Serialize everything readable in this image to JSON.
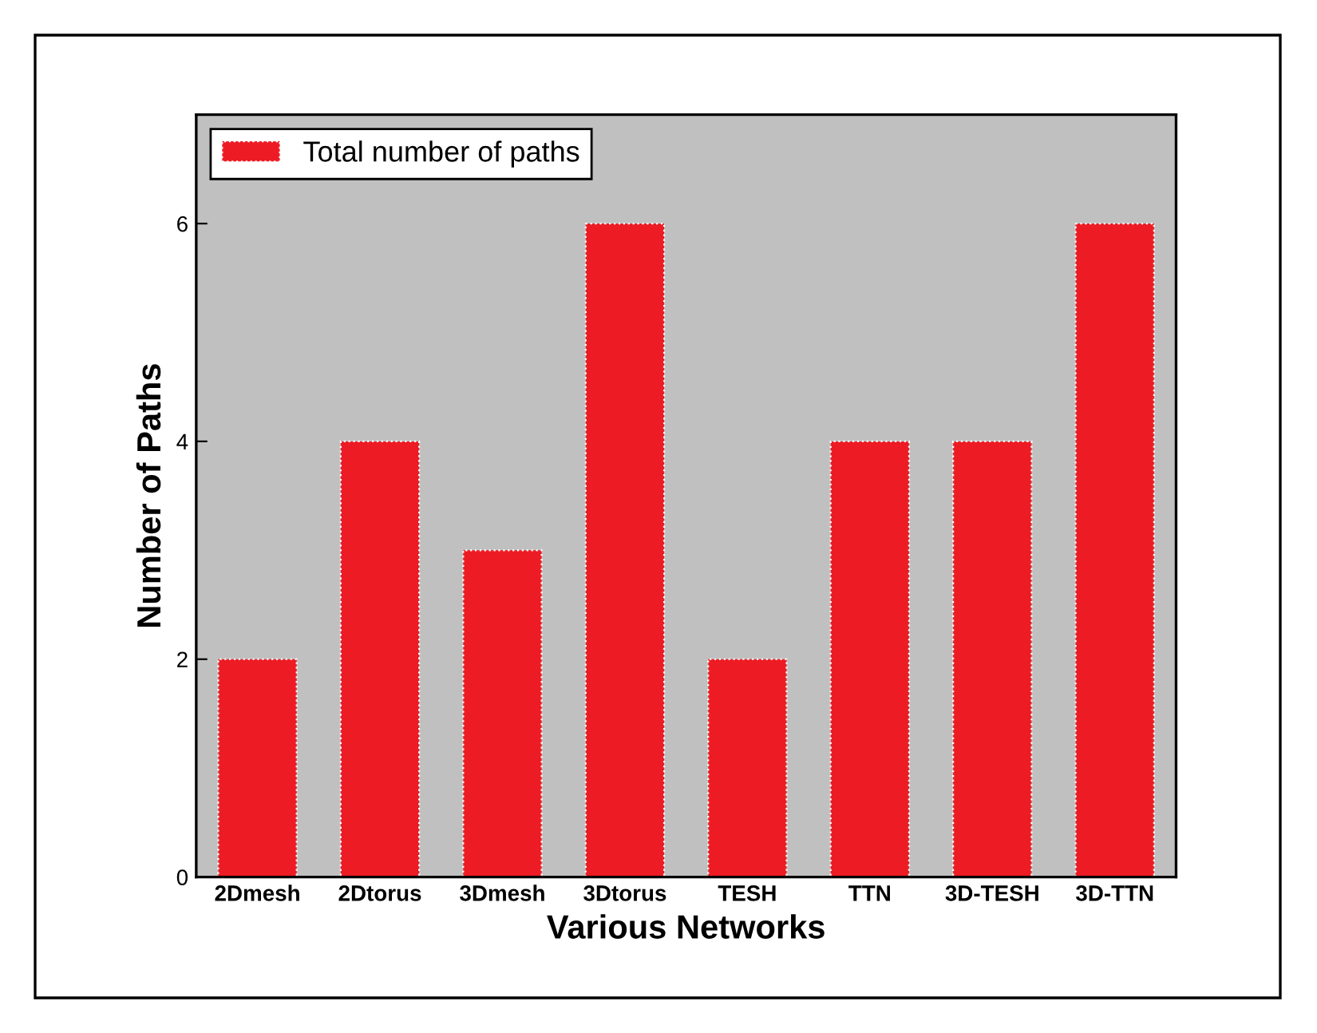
{
  "chart_data": {
    "type": "bar",
    "xlabel": "Various Networks",
    "ylabel": "Number of Paths",
    "categories": [
      "2Dmesh",
      "2Dtorus",
      "3Dmesh",
      "3Dtorus",
      "TESH",
      "TTN",
      "3D-TESH",
      "3D-TTN"
    ],
    "series": [
      {
        "name": "Total number of paths",
        "color": "#ed1c24",
        "values": [
          2,
          4,
          3,
          6,
          2,
          4,
          4,
          6
        ]
      }
    ],
    "ylim": [
      0,
      7
    ],
    "yticks": [
      0,
      2,
      4,
      6
    ],
    "legend": "top left",
    "grid": false
  }
}
